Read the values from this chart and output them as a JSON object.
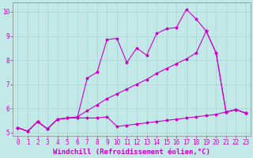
{
  "xlabel": "Windchill (Refroidissement éolien,°C)",
  "xlim": [
    -0.5,
    23.5
  ],
  "ylim": [
    4.85,
    10.4
  ],
  "bg_color": "#c2e8e8",
  "grid_color": "#a8d4d4",
  "line_color": "#cc00cc",
  "x": [
    0,
    1,
    2,
    3,
    4,
    5,
    6,
    7,
    8,
    9,
    10,
    11,
    12,
    13,
    14,
    15,
    16,
    17,
    18,
    19,
    20,
    21,
    22,
    23
  ],
  "series_top": [
    5.2,
    5.05,
    5.45,
    5.15,
    5.55,
    5.6,
    5.6,
    7.25,
    7.5,
    8.85,
    8.9,
    7.9,
    8.5,
    8.2,
    9.1,
    9.3,
    9.35,
    10.1,
    9.7,
    9.2,
    8.3,
    5.85,
    5.95,
    5.8
  ],
  "series_mid": [
    5.2,
    5.05,
    5.45,
    5.15,
    5.55,
    5.6,
    5.65,
    5.9,
    6.15,
    6.4,
    6.6,
    6.8,
    7.0,
    7.2,
    7.45,
    7.65,
    7.85,
    8.05,
    8.3,
    9.2,
    8.3,
    5.85,
    5.95,
    5.8
  ],
  "series_bot": [
    5.2,
    5.05,
    5.45,
    5.15,
    5.55,
    5.6,
    5.6,
    5.6,
    5.6,
    5.65,
    5.25,
    5.3,
    5.35,
    5.4,
    5.45,
    5.5,
    5.55,
    5.6,
    5.65,
    5.7,
    5.75,
    5.85,
    5.95,
    5.8
  ],
  "xlabel_fontsize": 6.5,
  "tick_fontsize": 5.5,
  "marker": "*",
  "markersize": 2.5,
  "linewidth": 0.8
}
